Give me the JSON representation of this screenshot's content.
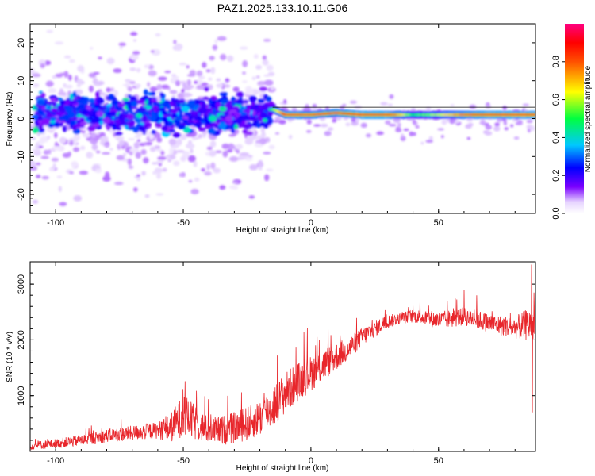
{
  "title": "PAZ1.2025.133.10.11.G06",
  "chart_data": [
    {
      "type": "heatmap",
      "xlabel": "Height of straight line (km)",
      "ylabel": "Frequency (Hz)",
      "xlim": [
        -110,
        88
      ],
      "ylim": [
        -25,
        25
      ],
      "xticks": [
        -100,
        -50,
        0,
        50
      ],
      "yticks": [
        -20,
        -10,
        0,
        10,
        20
      ],
      "colorbar": {
        "label": "Normalized spectral amplitude",
        "range": [
          0,
          1
        ],
        "ticks": [
          "0.0",
          "0.2",
          "0.4",
          "0.6",
          "0.8"
        ],
        "colormap": "rainbow (white at 0, purple, blue, cyan, green, yellow, red, magenta at 1)"
      },
      "ridge": {
        "description": "strong narrow tone near 1 Hz for heights above about -15 km; diffuse broadband energy between about 5 and -5 Hz below about -15 km",
        "x": [
          -105,
          -90,
          -75,
          -60,
          -50,
          -40,
          -30,
          -20,
          -15,
          -10,
          -5,
          0,
          10,
          20,
          30,
          40,
          50,
          60,
          70,
          80,
          88
        ],
        "center_hz": [
          1.5,
          1.5,
          1.5,
          1.0,
          1.0,
          2.0,
          2.0,
          2.0,
          2.5,
          1.0,
          1.0,
          1.0,
          1.5,
          1.0,
          1.0,
          1.0,
          1.0,
          1.0,
          1.0,
          1.0,
          1.0
        ],
        "amplitude": [
          0.3,
          0.3,
          0.3,
          0.3,
          0.35,
          0.3,
          0.3,
          0.35,
          0.5,
          0.85,
          0.85,
          0.8,
          0.85,
          0.9,
          0.9,
          0.5,
          0.6,
          0.8,
          0.9,
          0.9,
          0.9
        ]
      }
    },
    {
      "type": "line",
      "xlabel": "Height of straight line (km)",
      "ylabel": "SNR (10 * v/v)",
      "xlim": [
        -110,
        88
      ],
      "ylim": [
        0,
        3400
      ],
      "xticks": [
        -100,
        -50,
        0,
        50
      ],
      "yticks": [
        1000,
        2000,
        3000
      ],
      "color": "#e8262b",
      "trend": {
        "x": [
          -110,
          -100,
          -90,
          -80,
          -70,
          -60,
          -55,
          -50,
          -45,
          -40,
          -35,
          -30,
          -25,
          -20,
          -15,
          -10,
          -5,
          0,
          5,
          10,
          15,
          20,
          25,
          30,
          35,
          40,
          45,
          50,
          55,
          60,
          65,
          70,
          75,
          80,
          85,
          88
        ],
        "y": [
          100,
          140,
          200,
          280,
          330,
          380,
          420,
          650,
          500,
          380,
          380,
          420,
          500,
          600,
          800,
          1050,
          1250,
          1400,
          1550,
          1700,
          1850,
          2050,
          2200,
          2330,
          2380,
          2430,
          2400,
          2350,
          2380,
          2420,
          2370,
          2300,
          2250,
          2220,
          2270,
          2300
        ]
      },
      "spread": {
        "x": [
          -110,
          -60,
          -50,
          -40,
          -20,
          -10,
          0,
          10,
          20,
          35,
          50,
          70,
          80,
          88
        ],
        "y": [
          70,
          150,
          380,
          240,
          330,
          380,
          320,
          250,
          170,
          100,
          160,
          170,
          200,
          350
        ]
      },
      "peak_annotations": [
        {
          "x": 86.5,
          "y": 3350
        },
        {
          "x": 86.8,
          "y": 700
        },
        {
          "x": 60,
          "y": 2900
        },
        {
          "x": 65,
          "y": 2800
        }
      ]
    }
  ]
}
